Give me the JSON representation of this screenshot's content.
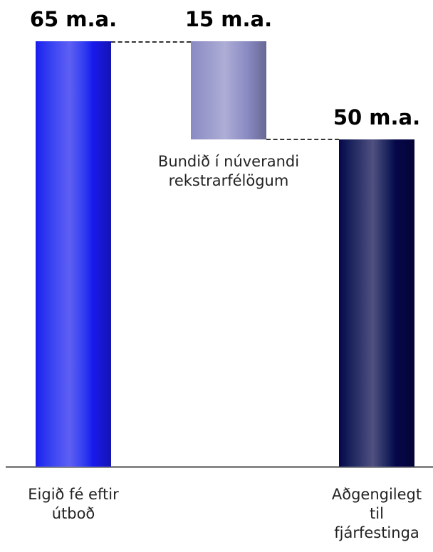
{
  "chart_data": {
    "type": "waterfall",
    "categories": [
      "Eigið fé eftir útboð",
      "Bundið í núverandi rekstrarfélögum",
      "Aðgengilegt til fjárfestinga"
    ],
    "values": [
      65,
      15,
      50
    ],
    "value_labels": [
      "65 m.a.",
      "15 m.a.",
      "50 m.a."
    ],
    "colors": [
      "#1a1aee",
      "#8a8ac4",
      "#06064a"
    ]
  }
}
